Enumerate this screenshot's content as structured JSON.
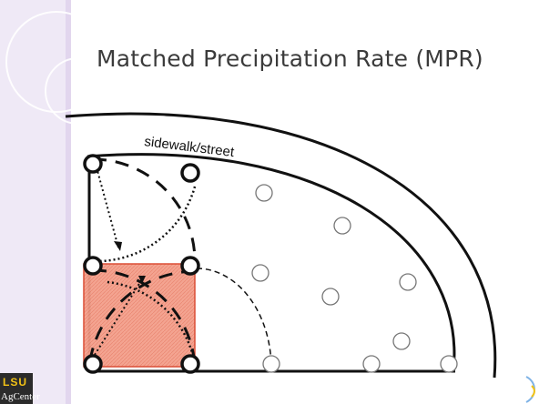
{
  "slide": {
    "title": "Matched Precipitation Rate (MPR)",
    "colors": {
      "left_strip": "#efe9f6",
      "highlight_fill": "#f4a08c",
      "highlight_border": "#d9442b",
      "lines": "#111111"
    }
  },
  "diagram": {
    "street_label": "sidewalk/street"
  },
  "logo": {
    "top_text": "LSU",
    "bottom_text": "AgCenter"
  }
}
